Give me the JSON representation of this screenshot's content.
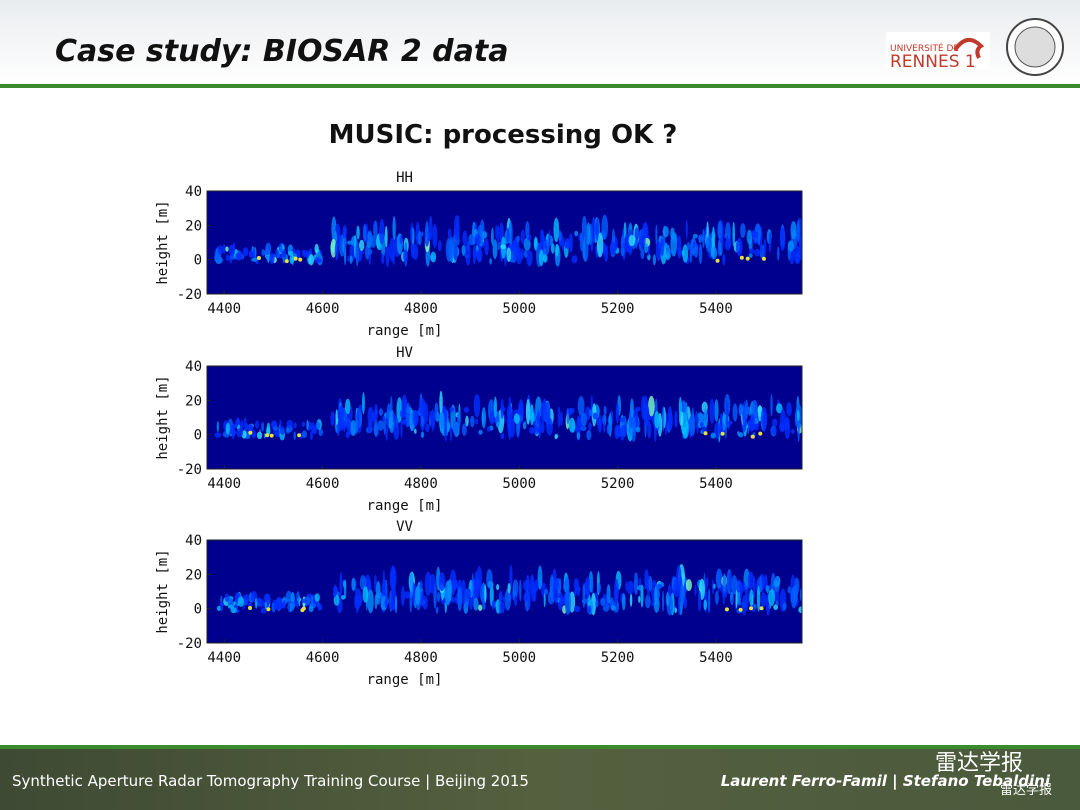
{
  "header": {
    "title": "Case study: BIOSAR 2 data",
    "logo_text_top": "UNIVERSITÉ DE",
    "logo_text_bottom": "RENNES 1"
  },
  "slide_title": "MUSIC: processing OK ?",
  "plots": [
    {
      "type": "heatmap",
      "title": "HH",
      "x_label": "range [m]",
      "y_label": "height [m]",
      "xlim": [
        4365,
        5575
      ],
      "ylim": [
        -20,
        40
      ],
      "xticks": [
        4400,
        4600,
        4800,
        5000,
        5200,
        5400
      ],
      "yticks": [
        -20,
        0,
        20,
        40
      ]
    },
    {
      "type": "heatmap",
      "title": "HV",
      "x_label": "range [m]",
      "y_label": "height [m]",
      "xlim": [
        4365,
        5575
      ],
      "ylim": [
        -20,
        40
      ],
      "xticks": [
        4400,
        4600,
        4800,
        5000,
        5200,
        5400
      ],
      "yticks": [
        -20,
        0,
        20,
        40
      ]
    },
    {
      "type": "heatmap",
      "title": "VV",
      "x_label": "range [m]",
      "y_label": "height [m]",
      "xlim": [
        4365,
        5575
      ],
      "ylim": [
        -20,
        40
      ],
      "xticks": [
        4400,
        4600,
        4800,
        5000,
        5200,
        5400
      ],
      "yticks": [
        -20,
        0,
        20,
        40
      ]
    }
  ],
  "footer": {
    "left": "Synthetic Aperture Radar Tomography Training Course | Beijing 2015",
    "right": "Laurent Ferro-Famil | Stefano Tebaldini",
    "watermark": "雷达学报",
    "watermark_small": "雷达学报"
  }
}
